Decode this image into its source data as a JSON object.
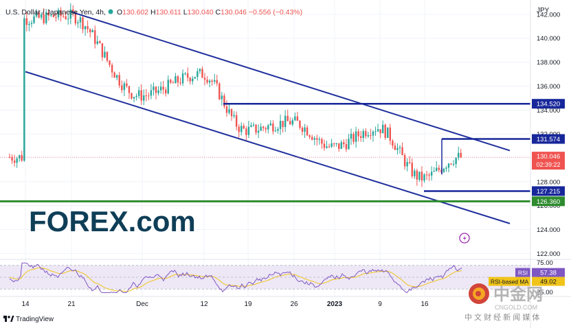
{
  "header": {
    "symbol": "U.S. Dollar / Japanese Yen, 4h,",
    "ohlc": [
      {
        "k": "O",
        "v": "130.602"
      },
      {
        "k": "H",
        "v": "130.611"
      },
      {
        "k": "L",
        "v": "130.040"
      },
      {
        "k": "C",
        "v": "130.046"
      }
    ],
    "change": "−0.556 (−0.43%)"
  },
  "price_axis": {
    "unit": "JPY",
    "ticks": [
      "142.000",
      "140.000",
      "138.000",
      "136.000",
      "134.000",
      "132.000",
      "128.000",
      "126.000",
      "124.000",
      "122.000"
    ]
  },
  "price_labels": {
    "last_price": "130.046",
    "countdown": "02:39:22",
    "levels": [
      "134.520",
      "131.574",
      "127.215",
      "126.360"
    ]
  },
  "rsi": {
    "ticks": [
      "75.00",
      "50.00",
      "25.00"
    ],
    "label": "RSI",
    "value": "57.38",
    "ma_label": "RSI-based MA",
    "ma_value": "49.02"
  },
  "time_axis": {
    "ticks": [
      "14",
      "21",
      "Dec",
      "12",
      "19",
      "26",
      "2023",
      "9",
      "16"
    ]
  },
  "watermarks": {
    "forex_logo": "FOREX.com",
    "cngold_name": "中金网",
    "cngold_url": "CNGOLD.COM",
    "cngold_tagline": "中 文 财 经 新 闻 媒 体"
  },
  "branding": {
    "tradingview": "TradingView"
  },
  "colors": {
    "channel": "#1f2f9c",
    "level": "#17279a",
    "support": "#2e8b2e",
    "bull": "#26a69a",
    "bear": "#ef5350",
    "rsi": "#7e57c2",
    "rsi_ma": "#f0c419",
    "rsi_band": "#ede7f6",
    "last_price": "#ef5350"
  },
  "chart_data": {
    "type": "candlestick",
    "instrument": "U.S. Dollar / Japanese Yen",
    "timeframe": "4h",
    "y_unit": "JPY",
    "ylim": [
      121.5,
      143.2
    ],
    "x_labels": [
      "14",
      "21",
      "Dec",
      "12",
      "19",
      "26",
      "2023",
      "9",
      "16"
    ],
    "price_path": [
      {
        "t": "14",
        "price": 141.6
      },
      {
        "t": "21",
        "price": 141.9
      },
      {
        "t": "Dec",
        "price": 135.2
      },
      {
        "t": "12",
        "price": 137.0
      },
      {
        "t": "19",
        "price": 132.3
      },
      {
        "t": "26",
        "price": 133.0
      },
      {
        "t": "2023",
        "price": 130.9
      },
      {
        "t": "9",
        "price": 132.5
      },
      {
        "t": "16",
        "price": 128.3
      },
      {
        "t": "last",
        "price": 130.046
      }
    ],
    "horizontal_levels": [
      {
        "value": 134.52
      },
      {
        "value": 131.574
      },
      {
        "value": 127.215
      },
      {
        "value": 126.36
      }
    ],
    "descending_channel": {
      "upper": [
        {
          "t": "21",
          "price": 142.2
        },
        {
          "t": "end",
          "price": 130.6
        }
      ],
      "lower": [
        {
          "t": "14",
          "price": 137.2
        },
        {
          "t": "end",
          "price": 124.5
        }
      ]
    },
    "last_price": 130.046,
    "rsi": {
      "ylim": [
        20,
        80
      ],
      "levels": [
        70,
        30
      ],
      "value": 57.38,
      "ma": 49.02
    }
  }
}
